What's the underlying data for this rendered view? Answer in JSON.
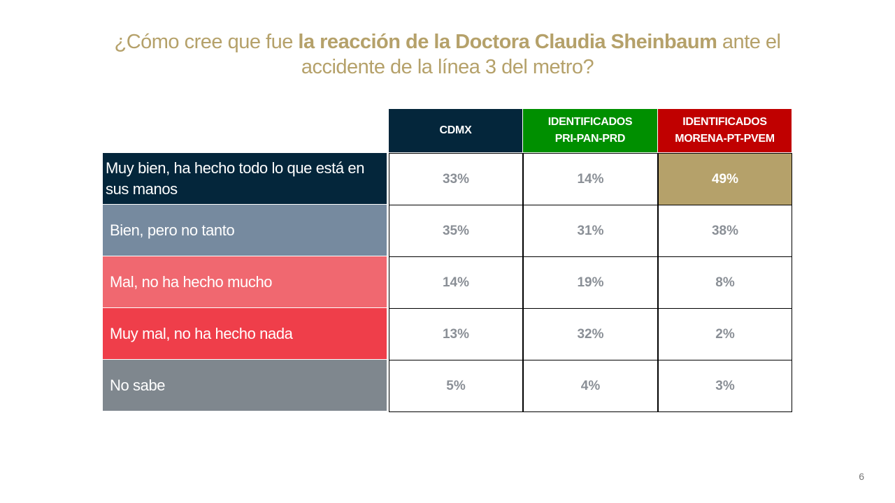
{
  "title": {
    "pre": "¿Cómo cree que fue ",
    "bold": "la reacción de la Doctora Claudia Sheinbaum",
    "post": " ante el accidente de la línea 3 del metro?"
  },
  "columns": [
    {
      "label_line1": "CDMX",
      "label_line2": "",
      "color": "#04263b"
    },
    {
      "label_line1": "IDENTIFICADOS",
      "label_line2": "PRI-PAN-PRD",
      "color": "#008f00"
    },
    {
      "label_line1": "IDENTIFICADOS",
      "label_line2": "MORENA-PT-PVEM",
      "color": "#c00000"
    }
  ],
  "rows": [
    {
      "label": " Muy bien, ha hecho todo lo que está en sus manos",
      "color": "#04263b",
      "values": [
        "33%",
        "14%",
        "49%"
      ]
    },
    {
      "label": "Bien, pero no tanto",
      "color": "#768a9f",
      "values": [
        "35%",
        "31%",
        "38%"
      ]
    },
    {
      "label": "Mal, no ha hecho mucho",
      "color": "#f06870",
      "values": [
        "14%",
        "19%",
        "8%"
      ]
    },
    {
      "label": "Muy mal, no ha hecho nada",
      "color": "#ef3e4a",
      "values": [
        "13%",
        "32%",
        "2%"
      ]
    },
    {
      "label": "No sabe",
      "color": "#7f878e",
      "values": [
        "5%",
        "4%",
        "3%"
      ]
    }
  ],
  "highlight": {
    "row": 0,
    "col": 2,
    "color": "#b5a16a"
  },
  "page_number": "6"
}
